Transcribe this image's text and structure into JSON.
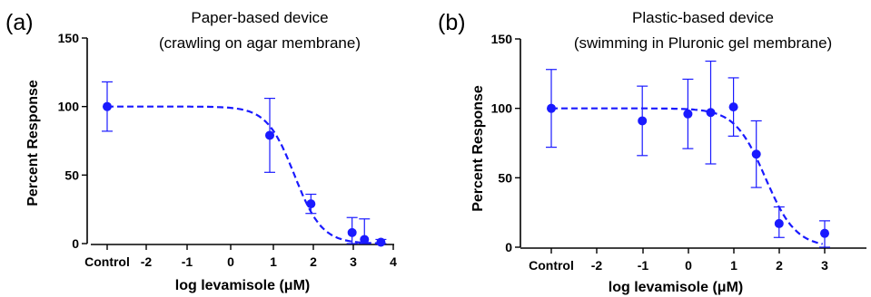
{
  "chart_data": [
    {
      "panel_label": "(a)",
      "type": "scatter",
      "title": "Paper-based device",
      "subtitle": "(crawling on agar membrane)",
      "xlabel": "log levamisole (μM)",
      "ylabel": "Percent Response",
      "xlim": [
        -3,
        4
      ],
      "ylim": [
        0,
        150
      ],
      "xtick_labels": [
        "Control",
        "-2",
        "-1",
        "0",
        "1",
        "2",
        "3",
        "4"
      ],
      "ytick_labels": [
        "0",
        "50",
        "100",
        "150"
      ],
      "grid": false,
      "point_color": "#1a1aff",
      "points": [
        {
          "x": "Control",
          "y": 100,
          "err_low": 82,
          "err_high": 118
        },
        {
          "x": 1.0,
          "y": 79,
          "err_low": 52,
          "err_high": 106
        },
        {
          "x": 2.0,
          "y": 29,
          "err_low": 22,
          "err_high": 36
        },
        {
          "x": 3.0,
          "y": 8,
          "err_low": 0,
          "err_high": 19
        },
        {
          "x": 3.3,
          "y": 3,
          "err_low": 0,
          "err_high": 18
        },
        {
          "x": 3.7,
          "y": 1,
          "err_low": 0,
          "err_high": 3
        }
      ],
      "fit": {
        "style": "dashed",
        "top": 100,
        "bottom": 0,
        "log_ic50": 1.6,
        "hill_slope": -1.3
      }
    },
    {
      "panel_label": "(b)",
      "type": "scatter",
      "title": "Plastic-based device",
      "subtitle": "(swimming in Pluronic gel membrane)",
      "xlabel": "log levamisole (μM)",
      "ylabel": "Percent Response",
      "xlim": [
        -3,
        3.5
      ],
      "ylim": [
        0,
        150
      ],
      "xtick_labels": [
        "Control",
        "-2",
        "-1",
        "0",
        "1",
        "2",
        "3"
      ],
      "ytick_labels": [
        "0",
        "50",
        "100",
        "150"
      ],
      "grid": false,
      "point_color": "#1a1aff",
      "points": [
        {
          "x": "Control",
          "y": 100,
          "err_low": 72,
          "err_high": 128
        },
        {
          "x": -1.0,
          "y": 91,
          "err_low": 66,
          "err_high": 116
        },
        {
          "x": 0.0,
          "y": 96,
          "err_low": 71,
          "err_high": 121
        },
        {
          "x": 0.5,
          "y": 97,
          "err_low": 60,
          "err_high": 134
        },
        {
          "x": 1.0,
          "y": 101,
          "err_low": 80,
          "err_high": 122
        },
        {
          "x": 1.5,
          "y": 67,
          "err_low": 43,
          "err_high": 91
        },
        {
          "x": 2.0,
          "y": 17,
          "err_low": 7,
          "err_high": 29
        },
        {
          "x": 3.0,
          "y": 10,
          "err_low": 0,
          "err_high": 19
        }
      ],
      "fit": {
        "style": "dashed",
        "top": 100,
        "bottom": 0,
        "log_ic50": 1.7,
        "hill_slope": -1.3
      }
    }
  ]
}
